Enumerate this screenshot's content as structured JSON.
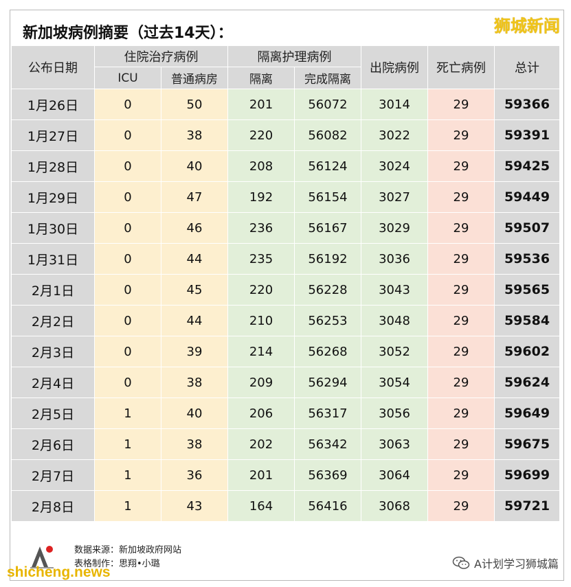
{
  "title": "新加坡病例摘要（过去14天）：",
  "brand": "狮城新闻",
  "headers": {
    "date": "公布日期",
    "hospital": "住院治疗病例",
    "isolation": "隔离护理病例",
    "discharged": "出院病例",
    "deaths": "死亡病例",
    "total": "总计",
    "icu": "ICU",
    "ward": "普通病房",
    "isolated": "隔离",
    "completed": "完成隔离"
  },
  "rows": [
    {
      "date": "1月26日",
      "icu": "0",
      "ward": "50",
      "isolated": "201",
      "completed": "56072",
      "discharged": "3014",
      "deaths": "29",
      "total": "59366"
    },
    {
      "date": "1月27日",
      "icu": "0",
      "ward": "38",
      "isolated": "220",
      "completed": "56082",
      "discharged": "3022",
      "deaths": "29",
      "total": "59391"
    },
    {
      "date": "1月28日",
      "icu": "0",
      "ward": "40",
      "isolated": "208",
      "completed": "56124",
      "discharged": "3024",
      "deaths": "29",
      "total": "59425"
    },
    {
      "date": "1月29日",
      "icu": "0",
      "ward": "47",
      "isolated": "192",
      "completed": "56154",
      "discharged": "3027",
      "deaths": "29",
      "total": "59449"
    },
    {
      "date": "1月30日",
      "icu": "0",
      "ward": "46",
      "isolated": "236",
      "completed": "56167",
      "discharged": "3029",
      "deaths": "29",
      "total": "59507"
    },
    {
      "date": "1月31日",
      "icu": "0",
      "ward": "44",
      "isolated": "235",
      "completed": "56192",
      "discharged": "3036",
      "deaths": "29",
      "total": "59536"
    },
    {
      "date": "2月1日",
      "icu": "0",
      "ward": "45",
      "isolated": "220",
      "completed": "56228",
      "discharged": "3043",
      "deaths": "29",
      "total": "59565"
    },
    {
      "date": "2月2日",
      "icu": "0",
      "ward": "44",
      "isolated": "210",
      "completed": "56253",
      "discharged": "3048",
      "deaths": "29",
      "total": "59584"
    },
    {
      "date": "2月3日",
      "icu": "0",
      "ward": "39",
      "isolated": "214",
      "completed": "56268",
      "discharged": "3052",
      "deaths": "29",
      "total": "59602"
    },
    {
      "date": "2月4日",
      "icu": "0",
      "ward": "38",
      "isolated": "209",
      "completed": "56294",
      "discharged": "3054",
      "deaths": "29",
      "total": "59624"
    },
    {
      "date": "2月5日",
      "icu": "1",
      "ward": "40",
      "isolated": "206",
      "completed": "56317",
      "discharged": "3056",
      "deaths": "29",
      "total": "59649"
    },
    {
      "date": "2月6日",
      "icu": "1",
      "ward": "38",
      "isolated": "202",
      "completed": "56342",
      "discharged": "3063",
      "deaths": "29",
      "total": "59675"
    },
    {
      "date": "2月7日",
      "icu": "1",
      "ward": "36",
      "isolated": "201",
      "completed": "56369",
      "discharged": "3064",
      "deaths": "29",
      "total": "59699"
    },
    {
      "date": "2月8日",
      "icu": "1",
      "ward": "43",
      "isolated": "164",
      "completed": "56416",
      "discharged": "3068",
      "deaths": "29",
      "total": "59721"
    }
  ],
  "footer": {
    "source": "数据来源：新加坡政府网站",
    "author": "表格制作：思翔•小璐",
    "site_watermark": "shicheng.news",
    "account": "A计划学习狮城篇"
  },
  "colors": {
    "header_gray": "#d9d9d9",
    "hospital_yellow": "#fdefcf",
    "isolation_green": "#e2efd9",
    "death_pink": "#fbe0d6",
    "brand_gold": "#f0c419"
  }
}
